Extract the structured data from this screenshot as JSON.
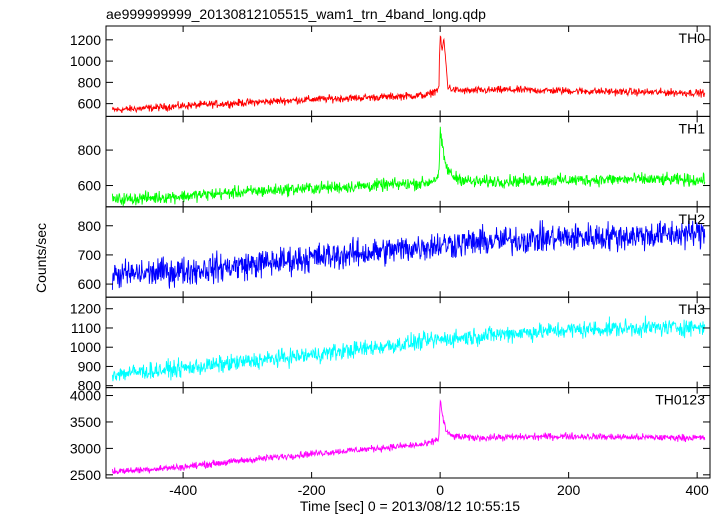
{
  "chart_data": {
    "type": "line",
    "title": "ae999999999_20130812105515_wam1_trn_4band_long.qdp",
    "xlabel": "Time [sec] 0 = 2013/08/12 10:55:15",
    "ylabel": "Counts/sec",
    "xlim": [
      -520,
      420
    ],
    "x_ticks": [
      -400,
      -200,
      0,
      200,
      400
    ],
    "panels": [
      {
        "name": "TH0",
        "color": "#ff0000",
        "ylim": [
          480,
          1330
        ],
        "y_ticks": [
          600,
          800,
          1000,
          1200
        ],
        "x": [
          -510,
          -450,
          -400,
          -300,
          -200,
          -100,
          -20,
          -2,
          0,
          3,
          6,
          9,
          12,
          20,
          40,
          100,
          200,
          300,
          410
        ],
        "values": [
          540,
          560,
          580,
          610,
          640,
          660,
          680,
          740,
          1250,
          1100,
          1200,
          980,
          760,
          730,
          720,
          730,
          720,
          710,
          700
        ],
        "noise": 30
      },
      {
        "name": "TH1",
        "color": "#00ff00",
        "ylim": [
          480,
          990
        ],
        "y_ticks": [
          600,
          800
        ],
        "x": [
          -510,
          -400,
          -300,
          -200,
          -100,
          -20,
          -2,
          0,
          3,
          6,
          10,
          20,
          50,
          100,
          200,
          300,
          410
        ],
        "values": [
          520,
          540,
          565,
          585,
          600,
          615,
          650,
          900,
          830,
          760,
          700,
          650,
          620,
          625,
          630,
          635,
          630
        ],
        "noise": 30
      },
      {
        "name": "TH2",
        "color": "#0000ff",
        "ylim": [
          555,
          865
        ],
        "y_ticks": [
          600,
          700,
          800
        ],
        "x": [
          -510,
          -400,
          -300,
          -200,
          -100,
          0,
          100,
          200,
          300,
          410
        ],
        "values": [
          630,
          645,
          665,
          690,
          710,
          735,
          750,
          760,
          765,
          775
        ],
        "noise": 42
      },
      {
        "name": "TH3",
        "color": "#00ffff",
        "ylim": [
          790,
          1260
        ],
        "y_ticks": [
          800,
          900,
          1000,
          1100,
          1200
        ],
        "x": [
          -510,
          -400,
          -300,
          -200,
          -100,
          0,
          100,
          200,
          300,
          410
        ],
        "values": [
          860,
          890,
          925,
          960,
          1000,
          1040,
          1070,
          1090,
          1100,
          1105
        ],
        "noise": 38
      },
      {
        "name": "TH0123",
        "color": "#ff00ff",
        "ylim": [
          2440,
          4150
        ],
        "y_ticks": [
          2500,
          3000,
          3500,
          4000
        ],
        "x": [
          -510,
          -400,
          -300,
          -200,
          -100,
          -20,
          -2,
          0,
          3,
          6,
          10,
          20,
          50,
          100,
          200,
          300,
          410
        ],
        "values": [
          2560,
          2650,
          2780,
          2900,
          3000,
          3080,
          3180,
          3950,
          3650,
          3500,
          3300,
          3230,
          3200,
          3210,
          3230,
          3210,
          3200
        ],
        "noise": 55
      }
    ]
  }
}
